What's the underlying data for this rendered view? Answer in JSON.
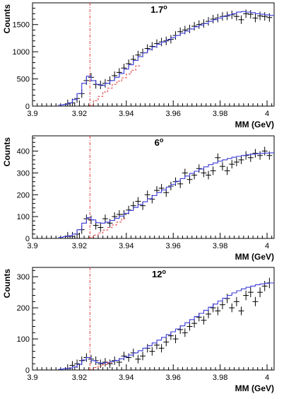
{
  "chart_data": [
    {
      "type": "line",
      "title": "1.7",
      "title_superscript": "o",
      "xlabel": "MM (GeV)",
      "ylabel": "Counts",
      "xlim": [
        3.9,
        4.003
      ],
      "ylim": [
        0,
        1900
      ],
      "x_ticks": [
        "3.9",
        "3.92",
        "3.94",
        "3.96",
        "3.98",
        "4"
      ],
      "x_tick_values": [
        3.9,
        3.92,
        3.94,
        3.96,
        3.98,
        4.0
      ],
      "y_ticks": [
        "0",
        "500",
        "1000",
        "1500"
      ],
      "y_tick_values": [
        0,
        500,
        1000,
        1500
      ],
      "threshold_line": 3.9245,
      "grid": false,
      "series": [
        {
          "kind": "data_points",
          "color": "#000000",
          "x": [
            3.915,
            3.917,
            3.919,
            3.921,
            3.923,
            3.925,
            3.927,
            3.929,
            3.931,
            3.933,
            3.935,
            3.937,
            3.939,
            3.941,
            3.943,
            3.945,
            3.947,
            3.949,
            3.951,
            3.953,
            3.955,
            3.957,
            3.959,
            3.961,
            3.963,
            3.965,
            3.967,
            3.969,
            3.971,
            3.973,
            3.975,
            3.977,
            3.979,
            3.981,
            3.983,
            3.985,
            3.987,
            3.989,
            3.991,
            3.993,
            3.995,
            3.997,
            3.999,
            4.001
          ],
          "y": [
            40,
            60,
            140,
            230,
            470,
            530,
            400,
            390,
            420,
            470,
            560,
            620,
            700,
            780,
            860,
            940,
            980,
            1060,
            1100,
            1150,
            1180,
            1200,
            1230,
            1300,
            1370,
            1400,
            1420,
            1470,
            1500,
            1520,
            1560,
            1600,
            1620,
            1650,
            1660,
            1680,
            1650,
            1590,
            1700,
            1690,
            1620,
            1660,
            1650,
            1630
          ]
        },
        {
          "kind": "fit_total",
          "color": "#3a3ad8",
          "x": [
            3.912,
            3.914,
            3.916,
            3.918,
            3.92,
            3.922,
            3.924,
            3.926,
            3.928,
            3.93,
            3.932,
            3.934,
            3.936,
            3.938,
            3.94,
            3.942,
            3.944,
            3.946,
            3.948,
            3.95,
            3.952,
            3.954,
            3.956,
            3.958,
            3.96,
            3.962,
            3.964,
            3.966,
            3.968,
            3.97,
            3.972,
            3.974,
            3.976,
            3.978,
            3.98,
            3.982,
            3.984,
            3.986,
            3.988,
            3.99,
            3.992,
            3.994,
            3.996,
            3.998,
            4.0,
            4.002
          ],
          "y": [
            20,
            30,
            60,
            120,
            230,
            420,
            550,
            470,
            400,
            380,
            420,
            470,
            530,
            600,
            680,
            760,
            840,
            910,
            980,
            1040,
            1090,
            1140,
            1180,
            1220,
            1260,
            1300,
            1340,
            1380,
            1420,
            1460,
            1490,
            1520,
            1560,
            1590,
            1620,
            1650,
            1680,
            1700,
            1730,
            1740,
            1730,
            1720,
            1700,
            1690,
            1680,
            1670
          ]
        },
        {
          "kind": "fit_background",
          "color": "#e03a3a",
          "x": [
            3.925,
            3.927,
            3.929,
            3.931,
            3.933,
            3.935,
            3.937,
            3.939,
            3.941,
            3.943,
            3.945
          ],
          "y": [
            20,
            100,
            180,
            260,
            330,
            400,
            460,
            520,
            590,
            660,
            740
          ]
        }
      ]
    },
    {
      "type": "line",
      "title": "6",
      "title_superscript": "o",
      "xlabel": "MM (GeV)",
      "ylabel": "Counts",
      "xlim": [
        3.9,
        4.003
      ],
      "ylim": [
        0,
        470
      ],
      "x_ticks": [
        "3.9",
        "3.92",
        "3.94",
        "3.96",
        "3.98",
        "4"
      ],
      "x_tick_values": [
        3.9,
        3.92,
        3.94,
        3.96,
        3.98,
        4.0
      ],
      "y_ticks": [
        "0",
        "100",
        "200",
        "300",
        "400"
      ],
      "y_tick_values": [
        0,
        100,
        200,
        300,
        400
      ],
      "threshold_line": 3.9245,
      "grid": false,
      "series": [
        {
          "kind": "data_points",
          "color": "#000000",
          "x": [
            3.915,
            3.917,
            3.919,
            3.921,
            3.923,
            3.925,
            3.927,
            3.929,
            3.931,
            3.933,
            3.935,
            3.937,
            3.939,
            3.941,
            3.943,
            3.945,
            3.947,
            3.949,
            3.951,
            3.953,
            3.955,
            3.957,
            3.959,
            3.961,
            3.963,
            3.965,
            3.967,
            3.969,
            3.971,
            3.973,
            3.975,
            3.977,
            3.979,
            3.981,
            3.983,
            3.985,
            3.987,
            3.989,
            3.991,
            3.993,
            3.995,
            3.997,
            3.999,
            4.001
          ],
          "y": [
            10,
            10,
            20,
            40,
            90,
            85,
            60,
            50,
            90,
            70,
            100,
            110,
            110,
            130,
            150,
            170,
            150,
            200,
            180,
            220,
            230,
            210,
            240,
            260,
            250,
            300,
            270,
            290,
            320,
            300,
            290,
            310,
            370,
            330,
            310,
            340,
            350,
            360,
            380,
            370,
            390,
            380,
            400,
            380
          ]
        },
        {
          "kind": "fit_total",
          "color": "#3a3ad8",
          "x": [
            3.912,
            3.914,
            3.916,
            3.918,
            3.92,
            3.922,
            3.924,
            3.926,
            3.928,
            3.93,
            3.932,
            3.934,
            3.936,
            3.938,
            3.94,
            3.942,
            3.944,
            3.946,
            3.948,
            3.95,
            3.952,
            3.954,
            3.956,
            3.958,
            3.96,
            3.962,
            3.964,
            3.966,
            3.968,
            3.97,
            3.972,
            3.974,
            3.976,
            3.978,
            3.98,
            3.982,
            3.984,
            3.986,
            3.988,
            3.99,
            3.992,
            3.994,
            3.996,
            3.998,
            4.0,
            4.002
          ],
          "y": [
            5,
            8,
            12,
            20,
            40,
            70,
            95,
            85,
            72,
            70,
            75,
            82,
            92,
            102,
            115,
            128,
            142,
            155,
            168,
            182,
            196,
            210,
            222,
            235,
            248,
            262,
            274,
            286,
            298,
            308,
            318,
            328,
            338,
            346,
            354,
            360,
            366,
            372,
            376,
            380,
            383,
            386,
            388,
            390,
            391,
            392
          ]
        },
        {
          "kind": "fit_background",
          "color": "#e03a3a",
          "x": [
            3.925,
            3.927,
            3.929,
            3.931,
            3.933,
            3.935,
            3.937,
            3.939
          ],
          "y": [
            5,
            15,
            25,
            38,
            50,
            62,
            75,
            90
          ]
        }
      ]
    },
    {
      "type": "line",
      "title": "12",
      "title_superscript": "o",
      "xlabel": "MM (GeV)",
      "ylabel": "Counts",
      "xlim": [
        3.9,
        4.003
      ],
      "ylim": [
        0,
        330
      ],
      "x_ticks": [
        "3.9",
        "3.92",
        "3.94",
        "3.96",
        "3.98",
        "4"
      ],
      "x_tick_values": [
        3.9,
        3.92,
        3.94,
        3.96,
        3.98,
        4.0
      ],
      "y_ticks": [
        "0",
        "100",
        "200",
        "300"
      ],
      "y_tick_values": [
        0,
        100,
        200,
        300
      ],
      "threshold_line": 3.9245,
      "grid": false,
      "series": [
        {
          "kind": "data_points",
          "color": "#000000",
          "x": [
            3.915,
            3.917,
            3.919,
            3.921,
            3.923,
            3.925,
            3.927,
            3.929,
            3.931,
            3.933,
            3.935,
            3.937,
            3.939,
            3.941,
            3.943,
            3.945,
            3.947,
            3.949,
            3.951,
            3.953,
            3.955,
            3.957,
            3.959,
            3.961,
            3.963,
            3.965,
            3.967,
            3.969,
            3.971,
            3.973,
            3.975,
            3.977,
            3.979,
            3.981,
            3.983,
            3.985,
            3.987,
            3.989,
            3.991,
            3.993,
            3.995,
            3.997,
            3.999,
            4.001
          ],
          "y": [
            5,
            15,
            20,
            30,
            40,
            35,
            30,
            20,
            25,
            20,
            30,
            25,
            45,
            40,
            55,
            35,
            45,
            70,
            60,
            80,
            70,
            90,
            110,
            100,
            130,
            120,
            140,
            150,
            170,
            160,
            180,
            200,
            190,
            210,
            230,
            200,
            220,
            190,
            240,
            250,
            220,
            250,
            270,
            280
          ]
        },
        {
          "kind": "fit_total",
          "color": "#3a3ad8",
          "x": [
            3.912,
            3.914,
            3.916,
            3.918,
            3.92,
            3.922,
            3.924,
            3.926,
            3.928,
            3.93,
            3.932,
            3.934,
            3.936,
            3.938,
            3.94,
            3.942,
            3.944,
            3.946,
            3.948,
            3.95,
            3.952,
            3.954,
            3.956,
            3.958,
            3.96,
            3.962,
            3.964,
            3.966,
            3.968,
            3.97,
            3.972,
            3.974,
            3.976,
            3.978,
            3.98,
            3.982,
            3.984,
            3.986,
            3.988,
            3.99,
            3.992,
            3.994,
            3.996,
            3.998,
            4.0,
            4.002
          ],
          "y": [
            2,
            4,
            6,
            10,
            18,
            32,
            40,
            30,
            24,
            22,
            24,
            27,
            31,
            36,
            42,
            48,
            55,
            62,
            70,
            78,
            87,
            96,
            105,
            114,
            123,
            132,
            142,
            152,
            162,
            172,
            182,
            192,
            202,
            212,
            222,
            231,
            240,
            248,
            255,
            261,
            266,
            270,
            274,
            277,
            279,
            280
          ]
        },
        {
          "kind": "fit_background",
          "color": "#e03a3a",
          "x": [
            3.925,
            3.927,
            3.929,
            3.931,
            3.933
          ],
          "y": [
            3,
            8,
            13,
            18,
            23
          ]
        }
      ]
    }
  ]
}
